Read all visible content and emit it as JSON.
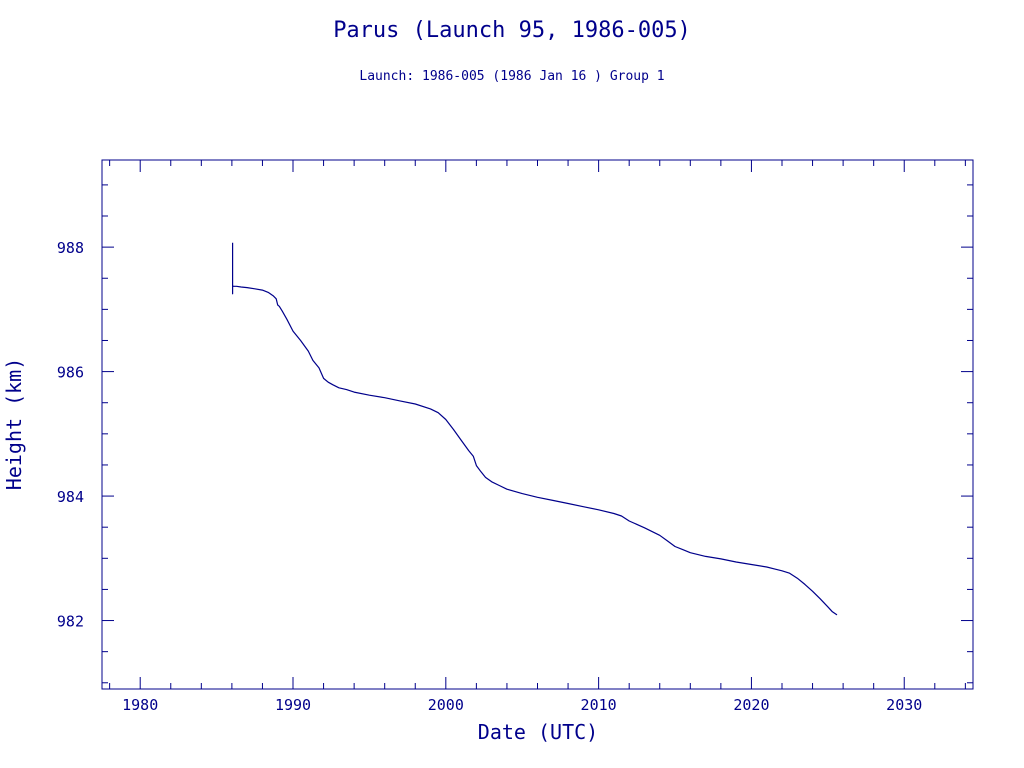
{
  "chart_data": {
    "type": "line",
    "title": "Parus (Launch 95, 1986-005)",
    "subtitle": "Launch: 1986-005  (1986 Jan 16 )  Group 1",
    "xlabel": "Date (UTC)",
    "ylabel": "Height (km)",
    "xlim": [
      1977.5,
      2034.5
    ],
    "ylim": [
      980.9,
      989.4
    ],
    "x_major_ticks": [
      1980,
      1990,
      2000,
      2010,
      2020,
      2030
    ],
    "x_tick_labels": [
      "1980",
      "1990",
      "2000",
      "2010",
      "2020",
      "2030"
    ],
    "x_minor_step": 2,
    "y_major_ticks": [
      982,
      984,
      986,
      988
    ],
    "y_tick_labels": [
      "982",
      "984",
      "986",
      "988"
    ],
    "y_minor_step": 0.5,
    "grid": false,
    "colors": {
      "ink": "#00008b"
    },
    "series": [
      {
        "x": [
          1986.05,
          1986.05,
          1986.05,
          1986.1,
          1986.3,
          1986.6,
          1987.0,
          1987.5,
          1988.0,
          1988.4,
          1988.7,
          1988.9,
          1989.0,
          1989.1,
          1989.3,
          1989.6,
          1990.0,
          1990.5,
          1991.0,
          1991.3,
          1991.7,
          1992.0,
          1992.3,
          1992.6,
          1993.0,
          1993.5,
          1994.0,
          1995.0,
          1996.0,
          1997.0,
          1998.0,
          1999.0,
          1999.5,
          2000.0,
          2000.5,
          2001.0,
          2001.5,
          2001.8,
          2002.0,
          2002.3,
          2002.6,
          2003.0,
          2003.5,
          2004.0,
          2005.0,
          2006.0,
          2007.0,
          2008.0,
          2009.0,
          2010.0,
          2011.0,
          2011.5,
          2012.0,
          2013.0,
          2014.0,
          2014.5,
          2015.0,
          2015.5,
          2016.0,
          2017.0,
          2018.0,
          2019.0,
          2020.0,
          2021.0,
          2021.5,
          2022.0,
          2022.5,
          2023.0,
          2023.5,
          2024.0,
          2024.5,
          2025.0,
          2025.3,
          2025.6
        ],
        "y": [
          988.07,
          987.25,
          987.38,
          987.37,
          987.37,
          987.36,
          987.35,
          987.33,
          987.31,
          987.27,
          987.22,
          987.17,
          987.07,
          987.05,
          986.97,
          986.84,
          986.65,
          986.5,
          986.33,
          986.18,
          986.06,
          985.89,
          985.83,
          985.79,
          985.74,
          985.71,
          985.67,
          985.62,
          985.58,
          985.53,
          985.48,
          985.4,
          985.34,
          985.23,
          985.07,
          984.9,
          984.73,
          984.64,
          984.49,
          984.39,
          984.3,
          984.23,
          984.17,
          984.11,
          984.04,
          983.98,
          983.93,
          983.88,
          983.83,
          983.78,
          983.72,
          983.68,
          983.6,
          983.49,
          983.37,
          983.28,
          983.19,
          983.14,
          983.09,
          983.03,
          982.99,
          982.94,
          982.9,
          982.86,
          982.83,
          982.8,
          982.76,
          982.68,
          982.58,
          982.47,
          982.35,
          982.22,
          982.14,
          982.09
        ]
      }
    ]
  }
}
